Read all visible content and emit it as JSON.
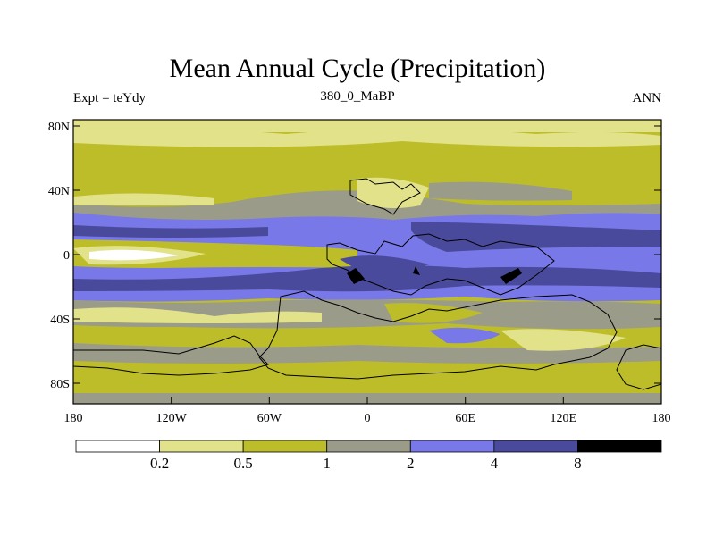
{
  "header": {
    "title": "Mean Annual Cycle (Precipitation)",
    "subtitle": "380_0_MaBP",
    "left_label": "Expt = teYdy",
    "right_label": "ANN"
  },
  "axes": {
    "y_ticks": [
      "80N",
      "40N",
      "0",
      "40S",
      "80S"
    ],
    "x_ticks": [
      "180",
      "120W",
      "60W",
      "0",
      "60E",
      "120E",
      "180"
    ]
  },
  "colorbar": {
    "colors": [
      "#ffffff",
      "#e2e28a",
      "#bdbd2a",
      "#9b9b8a",
      "#7878e8",
      "#4a4a9c",
      "#000000"
    ],
    "labels": [
      "0.2",
      "0.5",
      "1",
      "2",
      "4",
      "8"
    ]
  },
  "palette": {
    "frame": "#000000",
    "coast": "#000000"
  }
}
